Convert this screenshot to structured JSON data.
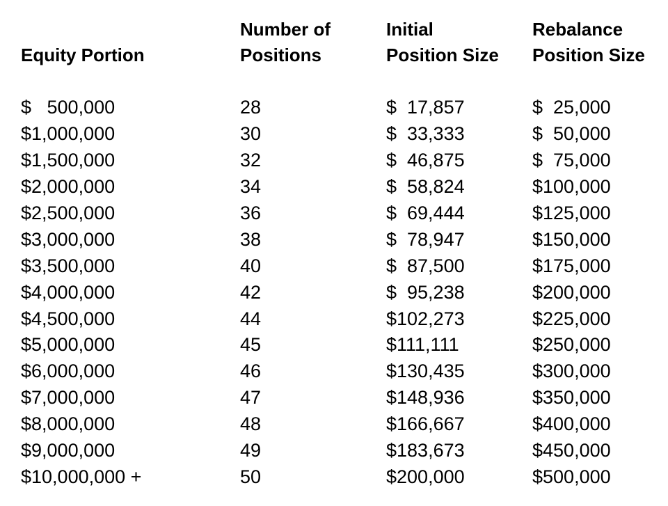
{
  "table": {
    "headers": [
      {
        "line1": "",
        "line2": "Equity Portion"
      },
      {
        "line1": "Number of",
        "line2": "Positions"
      },
      {
        "line1": "Initial",
        "line2": "Position Size"
      },
      {
        "line1": "Rebalance",
        "line2": "Position Size"
      }
    ],
    "rows": [
      [
        "$   500,000",
        "28",
        "$  17,857",
        "$  25,000"
      ],
      [
        "$1,000,000",
        "30",
        "$  33,333",
        "$  50,000"
      ],
      [
        "$1,500,000",
        "32",
        "$  46,875",
        "$  75,000"
      ],
      [
        "$2,000,000",
        "34",
        "$  58,824",
        "$100,000"
      ],
      [
        "$2,500,000",
        "36",
        "$  69,444",
        "$125,000"
      ],
      [
        "$3,000,000",
        "38",
        "$  78,947",
        "$150,000"
      ],
      [
        "$3,500,000",
        "40",
        "$  87,500",
        "$175,000"
      ],
      [
        "$4,000,000",
        "42",
        "$  95,238",
        "$200,000"
      ],
      [
        "$4,500,000",
        "44",
        "$102,273",
        "$225,000"
      ],
      [
        "$5,000,000",
        "45",
        "$111,111",
        "$250,000"
      ],
      [
        "$6,000,000",
        "46",
        "$130,435",
        "$300,000"
      ],
      [
        "$7,000,000",
        "47",
        "$148,936",
        "$350,000"
      ],
      [
        "$8,000,000",
        "48",
        "$166,667",
        "$400,000"
      ],
      [
        "$9,000,000",
        "49",
        "$183,673",
        "$450,000"
      ],
      [
        "$10,000,000 +",
        "50",
        "$200,000",
        "$500,000"
      ]
    ]
  }
}
